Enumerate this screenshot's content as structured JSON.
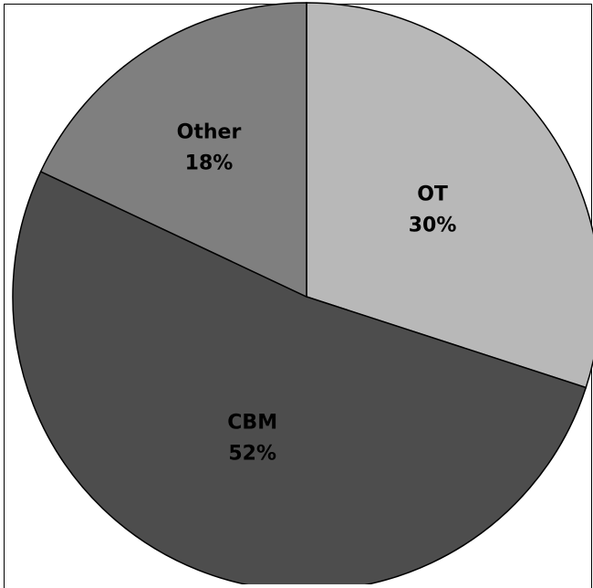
{
  "chart_data": {
    "type": "pie",
    "title": "",
    "start_angle_deg": 0,
    "direction": "clockwise",
    "slices": [
      {
        "name": "OT",
        "value": 30,
        "percent_label": "30%",
        "color": "#b8b8b8"
      },
      {
        "name": "CBM",
        "value": 52,
        "percent_label": "52%",
        "color": "#4d4d4d"
      },
      {
        "name": "Other",
        "value": 18,
        "percent_label": "18%",
        "color": "#7f7f7f"
      }
    ],
    "legend": "none",
    "label_position": "inside"
  }
}
